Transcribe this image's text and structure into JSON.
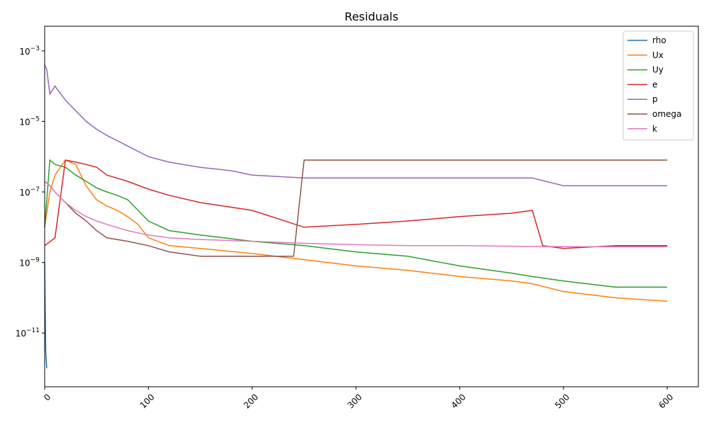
{
  "chart_data": {
    "type": "line",
    "title": "Residuals",
    "xlabel": "",
    "ylabel": "",
    "x_scale": "linear",
    "y_scale": "log",
    "xlim": [
      0,
      630
    ],
    "ylim": [
      3e-13,
      0.005
    ],
    "x_ticks": [
      0,
      100,
      200,
      300,
      400,
      500,
      600
    ],
    "x_tick_labels": [
      "0",
      "100",
      "200",
      "300",
      "400",
      "500",
      "600"
    ],
    "y_ticks": [
      1e-11,
      1e-09,
      1e-07,
      1e-05,
      0.001
    ],
    "y_tick_labels": [
      "10",
      "10",
      "10",
      "10",
      "10"
    ],
    "y_tick_exponents": [
      "−11",
      "−9",
      "−7",
      "−5",
      "−3"
    ],
    "grid": false,
    "legend_position": "top-right",
    "series": [
      {
        "name": "rho",
        "color": "#1f77b4",
        "x": [
          0,
          1,
          2
        ],
        "y": [
          1e-09,
          3e-12,
          1e-12
        ]
      },
      {
        "name": "Ux",
        "color": "#ff7f0e",
        "x": [
          0,
          5,
          10,
          20,
          30,
          40,
          50,
          60,
          70,
          80,
          90,
          100,
          120,
          150,
          200,
          250,
          300,
          350,
          400,
          450,
          470,
          500,
          550,
          600
        ],
        "y": [
          1e-08,
          1e-07,
          3e-07,
          8e-07,
          6e-07,
          1.5e-07,
          6e-08,
          4e-08,
          3e-08,
          2e-08,
          1.2e-08,
          5e-09,
          3e-09,
          2.5e-09,
          1.8e-09,
          1.2e-09,
          8e-10,
          6e-10,
          4e-10,
          3e-10,
          2.5e-10,
          1.5e-10,
          1e-10,
          8e-11
        ]
      },
      {
        "name": "Uy",
        "color": "#2ca02c",
        "x": [
          0,
          5,
          10,
          20,
          30,
          40,
          50,
          60,
          70,
          80,
          90,
          100,
          120,
          150,
          200,
          250,
          300,
          350,
          400,
          450,
          470,
          500,
          550,
          600
        ],
        "y": [
          1e-08,
          8e-07,
          6e-07,
          5e-07,
          3e-07,
          2e-07,
          1.3e-07,
          1e-07,
          8e-08,
          6e-08,
          3e-08,
          1.5e-08,
          8e-09,
          6e-09,
          4e-09,
          3e-09,
          2e-09,
          1.5e-09,
          8e-10,
          5e-10,
          4e-10,
          3e-10,
          2e-10,
          2e-10
        ]
      },
      {
        "name": "e",
        "color": "#d62728",
        "x": [
          0,
          10,
          20,
          30,
          40,
          50,
          60,
          80,
          100,
          120,
          150,
          200,
          250,
          300,
          350,
          400,
          450,
          470,
          480,
          500,
          550,
          600
        ],
        "y": [
          3e-09,
          5e-09,
          8e-07,
          7e-07,
          6e-07,
          5e-07,
          3e-07,
          2e-07,
          1.2e-07,
          8e-08,
          5e-08,
          3e-08,
          1e-08,
          1.2e-08,
          1.5e-08,
          2e-08,
          2.5e-08,
          3e-08,
          3e-09,
          2.5e-09,
          3e-09,
          3e-09
        ]
      },
      {
        "name": "p",
        "color": "#9467bd",
        "x": [
          0,
          2,
          5,
          10,
          20,
          30,
          40,
          50,
          60,
          80,
          100,
          120,
          150,
          180,
          200,
          250,
          300,
          350,
          400,
          450,
          470,
          500,
          550,
          600
        ],
        "y": [
          0.0004,
          0.0003,
          6e-05,
          0.0001,
          4e-05,
          2e-05,
          1e-05,
          6e-06,
          4e-06,
          2e-06,
          1e-06,
          7e-07,
          5e-07,
          4e-07,
          3e-07,
          2.5e-07,
          2.5e-07,
          2.5e-07,
          2.5e-07,
          2.5e-07,
          2.5e-07,
          1.5e-07,
          1.5e-07,
          1.5e-07
        ]
      },
      {
        "name": "omega",
        "color": "#8c564b",
        "x": [
          0,
          5,
          10,
          20,
          30,
          40,
          50,
          60,
          80,
          100,
          120,
          150,
          200,
          240,
          250,
          260,
          262,
          300,
          400,
          500,
          600
        ],
        "y": [
          2e-07,
          1.5e-07,
          1e-07,
          5e-08,
          2.5e-08,
          1.5e-08,
          8e-09,
          5e-09,
          4e-09,
          3e-09,
          2e-09,
          1.5e-09,
          1.5e-09,
          1.5e-09,
          8e-07,
          8e-07,
          8e-07,
          8e-07,
          8e-07,
          8e-07,
          8e-07
        ]
      },
      {
        "name": "k",
        "color": "#e377c2",
        "x": [
          0,
          5,
          10,
          20,
          30,
          40,
          50,
          60,
          80,
          100,
          120,
          150,
          200,
          250,
          300,
          350,
          400,
          450,
          500,
          550,
          600
        ],
        "y": [
          2e-07,
          1.5e-07,
          1e-07,
          5e-08,
          3e-08,
          2e-08,
          1.5e-08,
          1.2e-08,
          8e-09,
          6e-09,
          5e-09,
          4.5e-09,
          4e-09,
          3.5e-09,
          3.2e-09,
          3e-09,
          3e-09,
          2.9e-09,
          2.8e-09,
          2.8e-09,
          2.8e-09
        ]
      }
    ]
  }
}
